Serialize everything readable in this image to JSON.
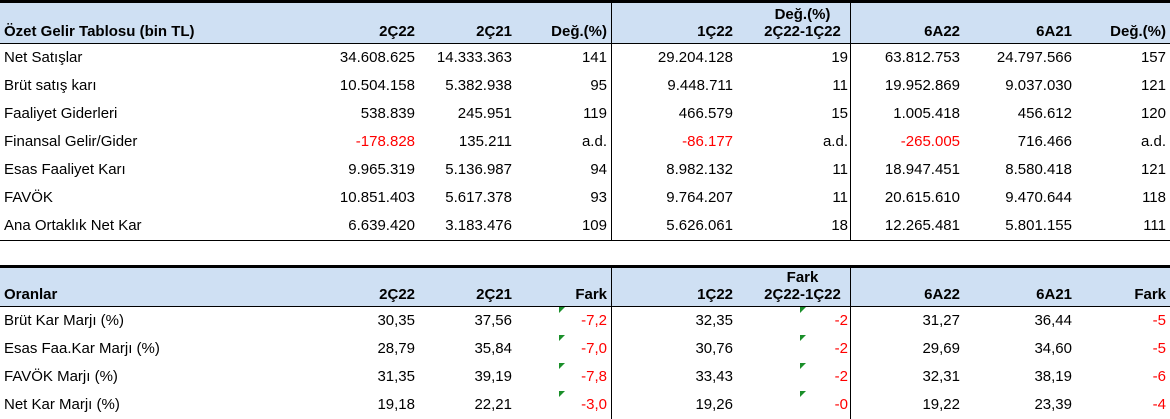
{
  "table1": {
    "headers": {
      "title": "Özet Gelir Tablosu (bin TL)",
      "c1": "2Ç22",
      "c2": "2Ç21",
      "c3": "Değ.(%)",
      "c4": "1Ç22",
      "c5_line1": "Değ.(%)",
      "c5_line2": "2Ç22-1Ç22",
      "c6": "6A22",
      "c7": "6A21",
      "c8": "Değ.(%)"
    },
    "rows": [
      {
        "label": "Net Satışlar",
        "v": [
          "34.608.625",
          "14.333.363",
          "141",
          "29.204.128",
          "19",
          "63.812.753",
          "24.797.566",
          "157"
        ]
      },
      {
        "label": "Brüt satış karı",
        "v": [
          "10.504.158",
          "5.382.938",
          "95",
          "9.448.711",
          "11",
          "19.952.869",
          "9.037.030",
          "121"
        ]
      },
      {
        "label": "Faaliyet Giderleri",
        "v": [
          "538.839",
          "245.951",
          "119",
          "466.579",
          "15",
          "1.005.418",
          "456.612",
          "120"
        ]
      },
      {
        "label": "Finansal Gelir/Gider",
        "v": [
          "-178.828",
          "135.211",
          "a.d.",
          "-86.177",
          "a.d.",
          "-265.005",
          "716.466",
          "a.d."
        ]
      },
      {
        "label": "Esas Faaliyet Karı",
        "v": [
          "9.965.319",
          "5.136.987",
          "94",
          "8.982.132",
          "11",
          "18.947.451",
          "8.580.418",
          "121"
        ]
      },
      {
        "label": "FAVÖK",
        "v": [
          "10.851.403",
          "5.617.378",
          "93",
          "9.764.207",
          "11",
          "20.615.610",
          "9.470.644",
          "118"
        ]
      },
      {
        "label": "Ana Ortaklık Net Kar",
        "v": [
          "6.639.420",
          "3.183.476",
          "109",
          "5.626.061",
          "18",
          "12.265.481",
          "5.801.155",
          "111"
        ]
      }
    ]
  },
  "table2": {
    "headers": {
      "title": "Oranlar",
      "c1": "2Ç22",
      "c2": "2Ç21",
      "c3": "Fark",
      "c4": "1Ç22",
      "c5_line1": "Fark",
      "c5_line2": "2Ç22-1Ç22",
      "c6": "6A22",
      "c7": "6A21",
      "c8": "Fark"
    },
    "rows": [
      {
        "label": "Brüt Kar Marjı (%)",
        "v": [
          "30,35",
          "37,56",
          "-7,2",
          "32,35",
          "-2",
          "31,27",
          "36,44",
          "-5"
        ]
      },
      {
        "label": "Esas Faa.Kar Marjı (%)",
        "v": [
          "28,79",
          "35,84",
          "-7,0",
          "30,76",
          "-2",
          "29,69",
          "34,60",
          "-5"
        ]
      },
      {
        "label": "FAVÖK Marjı (%)",
        "v": [
          "31,35",
          "39,19",
          "-7,8",
          "33,43",
          "-2",
          "32,31",
          "38,19",
          "-6"
        ]
      },
      {
        "label": "Net Kar Marjı (%)",
        "v": [
          "19,18",
          "22,21",
          "-3,0",
          "19,26",
          "-0",
          "19,22",
          "23,39",
          "-4"
        ]
      }
    ]
  },
  "colors": {
    "header_bg": "#cfe0f3",
    "negative_text": "#ff0000",
    "comment_marker": "#1a8f2a"
  }
}
